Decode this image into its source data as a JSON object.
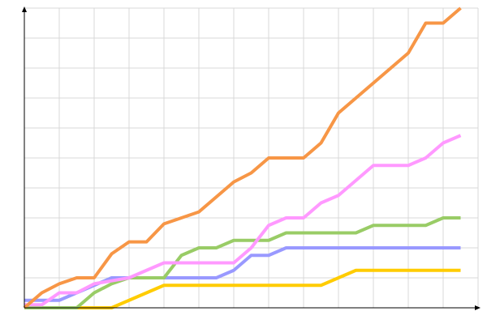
{
  "chart_data": {
    "type": "line",
    "x": [
      0,
      1,
      2,
      3,
      4,
      5,
      6,
      7,
      8,
      9,
      10,
      11,
      12,
      13,
      14,
      15,
      16,
      17,
      18,
      19,
      20,
      21,
      22,
      23,
      24,
      25
    ],
    "xlim": [
      0,
      26
    ],
    "xticks": [
      0,
      2,
      4,
      6,
      8,
      10,
      12,
      14,
      16,
      18,
      20,
      22,
      24,
      26
    ],
    "ylim": [
      0,
      10
    ],
    "yticks": [
      0,
      1,
      2,
      3,
      4,
      5,
      6,
      7,
      8,
      9,
      10
    ],
    "grid": true,
    "series": [
      {
        "color": "#ffcc00",
        "values": [
          0,
          0,
          0,
          0,
          0,
          0,
          0.25,
          0.5,
          0.75,
          0.75,
          0.75,
          0.75,
          0.75,
          0.75,
          0.75,
          0.75,
          0.75,
          0.75,
          1,
          1.25,
          1.25,
          1.25,
          1.25,
          1.25,
          1.25,
          1.25
        ]
      },
      {
        "color": "#9999ff",
        "values": [
          0.25,
          0.25,
          0.25,
          0.5,
          0.75,
          1,
          1,
          1,
          1,
          1,
          1,
          1,
          1.25,
          1.75,
          1.75,
          2,
          2,
          2,
          2,
          2,
          2,
          2,
          2,
          2,
          2,
          2
        ]
      },
      {
        "color": "#99cc66",
        "values": [
          0,
          0,
          0,
          0,
          0.5,
          0.8,
          1,
          1,
          1,
          1.75,
          2,
          2,
          2.25,
          2.25,
          2.25,
          2.5,
          2.5,
          2.5,
          2.5,
          2.5,
          2.75,
          2.75,
          2.75,
          2.75,
          3,
          3
        ]
      },
      {
        "color": "#ff99ff",
        "values": [
          0.1,
          0.1,
          0.5,
          0.5,
          0.8,
          0.9,
          1,
          1.25,
          1.5,
          1.5,
          1.5,
          1.5,
          1.5,
          2,
          2.75,
          3,
          3,
          3.5,
          3.75,
          4.25,
          4.75,
          4.75,
          4.75,
          5,
          5.5,
          5.75
        ]
      },
      {
        "color": "#f79646",
        "values": [
          0,
          0.5,
          0.8,
          1,
          1,
          1.8,
          2.2,
          2.2,
          2.8,
          3,
          3.2,
          3.7,
          4.2,
          4.5,
          5,
          5,
          5,
          5.5,
          6.5,
          7,
          7.5,
          8,
          8.5,
          9.5,
          9.5,
          10
        ]
      }
    ]
  }
}
